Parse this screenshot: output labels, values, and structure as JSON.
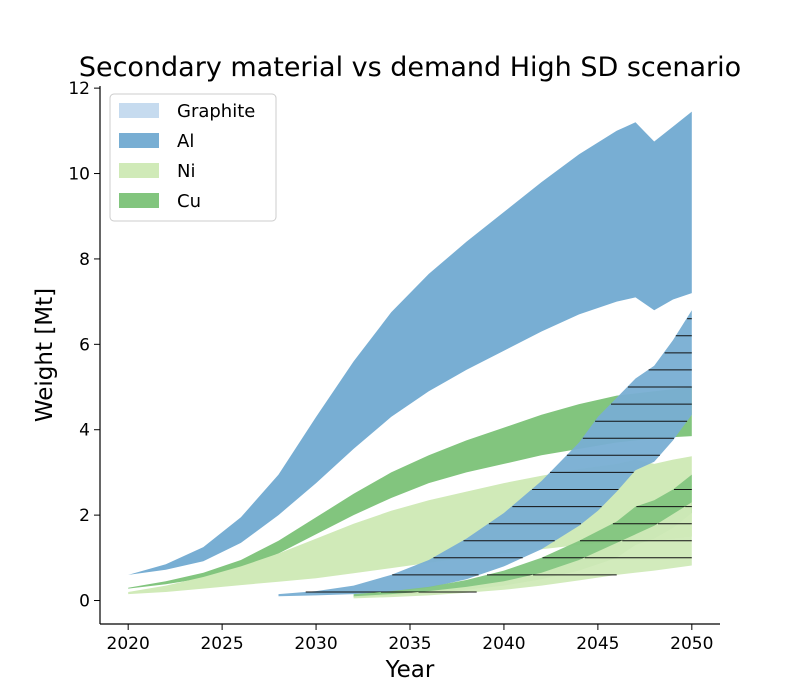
{
  "chart_data": {
    "type": "area",
    "title": "Secondary material vs demand High SD scenario",
    "xlabel": "Year",
    "ylabel": "Weight [Mt]",
    "xlim": [
      2018.5,
      2051.5
    ],
    "ylim": [
      -0.55,
      12.05
    ],
    "xticks": [
      2020,
      2025,
      2030,
      2035,
      2040,
      2045,
      2050
    ],
    "yticks": [
      0,
      2,
      4,
      6,
      8,
      10,
      12
    ],
    "legend": {
      "position": "top-left",
      "entries": [
        {
          "label": "Graphite",
          "color": "#c6dbef"
        },
        {
          "label": "Al",
          "color": "#78aed3"
        },
        {
          "label": "Ni",
          "color": "#d0eab8"
        },
        {
          "label": "Cu",
          "color": "#82c57e"
        }
      ]
    },
    "series": [
      {
        "name": "Al",
        "kind": "demand",
        "color": "#78aed3",
        "x": [
          2020,
          2022,
          2024,
          2026,
          2028,
          2030,
          2032,
          2034,
          2036,
          2038,
          2040,
          2042,
          2044,
          2046,
          2047,
          2048,
          2049,
          2050
        ],
        "upper": [
          0.6,
          0.85,
          1.25,
          1.95,
          2.95,
          4.3,
          5.6,
          6.75,
          7.65,
          8.4,
          9.1,
          9.8,
          10.45,
          11.0,
          11.2,
          10.75,
          11.1,
          11.45
        ],
        "lower": [
          0.6,
          0.72,
          0.92,
          1.35,
          2.0,
          2.75,
          3.55,
          4.3,
          4.9,
          5.4,
          5.85,
          6.3,
          6.7,
          7.0,
          7.1,
          6.8,
          7.05,
          7.2
        ]
      },
      {
        "name": "Cu",
        "kind": "demand",
        "color": "#82c57e",
        "x": [
          2020,
          2022,
          2024,
          2026,
          2028,
          2030,
          2032,
          2034,
          2036,
          2038,
          2040,
          2042,
          2044,
          2046,
          2048,
          2050
        ],
        "upper": [
          0.3,
          0.45,
          0.65,
          0.95,
          1.4,
          1.95,
          2.5,
          3.0,
          3.4,
          3.75,
          4.05,
          4.35,
          4.6,
          4.8,
          4.9,
          5.0
        ],
        "lower": [
          0.28,
          0.38,
          0.52,
          0.75,
          1.1,
          1.55,
          2.0,
          2.4,
          2.75,
          3.0,
          3.2,
          3.4,
          3.55,
          3.7,
          3.8,
          3.85
        ]
      },
      {
        "name": "Ni",
        "kind": "demand",
        "color": "#d0eab8",
        "x": [
          2020,
          2022,
          2024,
          2026,
          2028,
          2030,
          2032,
          2034,
          2036,
          2038,
          2040,
          2042,
          2044,
          2046,
          2047,
          2048,
          2049,
          2050
        ],
        "upper": [
          0.2,
          0.35,
          0.55,
          0.8,
          1.1,
          1.45,
          1.8,
          2.1,
          2.35,
          2.55,
          2.75,
          2.92,
          3.08,
          3.2,
          3.3,
          3.2,
          3.3,
          3.38
        ],
        "lower": [
          0.15,
          0.2,
          0.28,
          0.36,
          0.44,
          0.52,
          0.64,
          0.76,
          0.88,
          1.0,
          1.1,
          1.2,
          1.3,
          1.38,
          1.45,
          1.4,
          1.45,
          1.5
        ]
      },
      {
        "name": "Al",
        "kind": "secondary",
        "color": "#78aed3",
        "x": [
          2028,
          2030,
          2032,
          2034,
          2036,
          2038,
          2040,
          2042,
          2044,
          2045,
          2046,
          2047,
          2048,
          2049,
          2050
        ],
        "upper": [
          0.15,
          0.22,
          0.35,
          0.6,
          0.95,
          1.45,
          2.05,
          2.8,
          3.7,
          4.3,
          4.75,
          5.2,
          5.5,
          6.1,
          6.8
        ],
        "lower": [
          0.1,
          0.12,
          0.15,
          0.2,
          0.3,
          0.5,
          0.8,
          1.2,
          1.75,
          2.1,
          2.55,
          3.05,
          3.25,
          3.75,
          4.35
        ]
      },
      {
        "name": "Cu",
        "kind": "secondary",
        "color": "#82c57e",
        "x": [
          2032,
          2034,
          2036,
          2038,
          2040,
          2042,
          2044,
          2046,
          2047,
          2048,
          2049,
          2050
        ],
        "upper": [
          0.15,
          0.22,
          0.32,
          0.48,
          0.7,
          1.0,
          1.4,
          1.85,
          2.2,
          2.35,
          2.6,
          2.95
        ],
        "lower": [
          0.08,
          0.12,
          0.17,
          0.25,
          0.35,
          0.5,
          0.7,
          1.0,
          1.3,
          1.45,
          1.7,
          2.05
        ]
      },
      {
        "name": "Ni",
        "kind": "secondary",
        "color": "#d0eab8",
        "x": [
          2032,
          2034,
          2036,
          2038,
          2040,
          2042,
          2044,
          2046,
          2048,
          2050
        ],
        "upper": [
          0.1,
          0.15,
          0.22,
          0.32,
          0.45,
          0.65,
          0.95,
          1.35,
          1.75,
          2.3
        ],
        "lower": [
          0.05,
          0.08,
          0.12,
          0.18,
          0.25,
          0.35,
          0.47,
          0.6,
          0.7,
          0.82
        ]
      }
    ]
  }
}
